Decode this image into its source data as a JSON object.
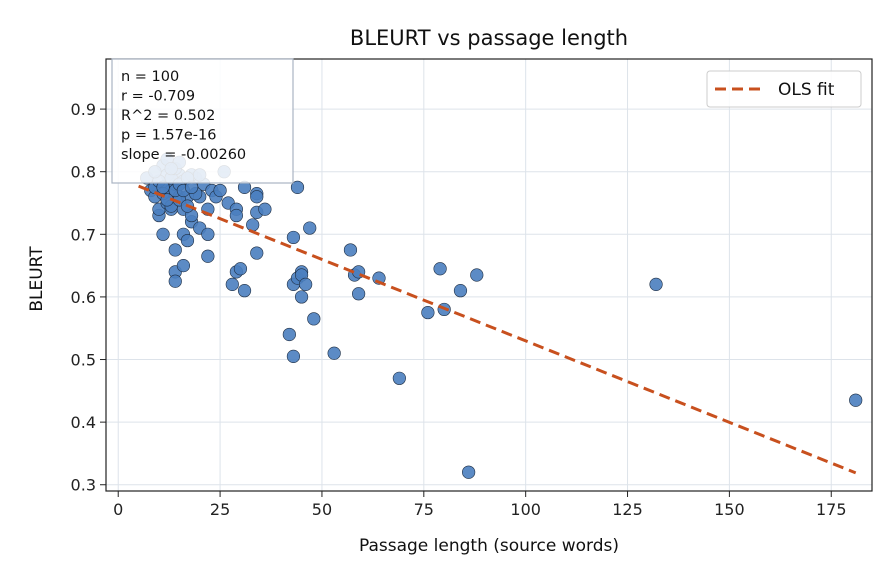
{
  "chart_data": {
    "type": "scatter",
    "title": "BLEURT vs passage length",
    "xlabel": "Passage length (source words)",
    "ylabel": "BLEURT",
    "xlim": [
      -3,
      185
    ],
    "ylim": [
      0.29,
      0.98
    ],
    "xticks": [
      0,
      25,
      50,
      75,
      100,
      125,
      150,
      175
    ],
    "yticks": [
      0.3,
      0.4,
      0.5,
      0.6,
      0.7,
      0.8,
      0.9
    ],
    "grid": true,
    "legend_position": "top-right",
    "point_color": "#4a7ebf",
    "fit_color": "#c8501e",
    "series": [
      {
        "name": "",
        "kind": "points",
        "points": [
          [
            7,
            0.79
          ],
          [
            8,
            0.77
          ],
          [
            9,
            0.76
          ],
          [
            10,
            0.73
          ],
          [
            10,
            0.74
          ],
          [
            11,
            0.7
          ],
          [
            11,
            0.81
          ],
          [
            12,
            0.75
          ],
          [
            12,
            0.78
          ],
          [
            13,
            0.74
          ],
          [
            13,
            0.77
          ],
          [
            14,
            0.78
          ],
          [
            14,
            0.64
          ],
          [
            14,
            0.625
          ],
          [
            14,
            0.675
          ],
          [
            15,
            0.76
          ],
          [
            15,
            0.795
          ],
          [
            16,
            0.65
          ],
          [
            16,
            0.7
          ],
          [
            16,
            0.74
          ],
          [
            17,
            0.69
          ],
          [
            17,
            0.76
          ],
          [
            18,
            0.72
          ],
          [
            18,
            0.73
          ],
          [
            19,
            0.79
          ],
          [
            20,
            0.76
          ],
          [
            20,
            0.71
          ],
          [
            21,
            0.78
          ],
          [
            22,
            0.74
          ],
          [
            22,
            0.7
          ],
          [
            22,
            0.665
          ],
          [
            23,
            0.77
          ],
          [
            24,
            0.76
          ],
          [
            25,
            0.77
          ],
          [
            26,
            0.8
          ],
          [
            27,
            0.75
          ],
          [
            28,
            0.62
          ],
          [
            29,
            0.74
          ],
          [
            29,
            0.73
          ],
          [
            29,
            0.64
          ],
          [
            30,
            0.645
          ],
          [
            31,
            0.61
          ],
          [
            31,
            0.775
          ],
          [
            33,
            0.715
          ],
          [
            34,
            0.765
          ],
          [
            34,
            0.735
          ],
          [
            34,
            0.67
          ],
          [
            34,
            0.76
          ],
          [
            36,
            0.74
          ],
          [
            42,
            0.54
          ],
          [
            43,
            0.505
          ],
          [
            43,
            0.695
          ],
          [
            43,
            0.62
          ],
          [
            44,
            0.775
          ],
          [
            44,
            0.63
          ],
          [
            45,
            0.64
          ],
          [
            45,
            0.6
          ],
          [
            45,
            0.635
          ],
          [
            46,
            0.62
          ],
          [
            47,
            0.71
          ],
          [
            48,
            0.565
          ],
          [
            53,
            0.51
          ],
          [
            57,
            0.675
          ],
          [
            58,
            0.635
          ],
          [
            59,
            0.64
          ],
          [
            59,
            0.605
          ],
          [
            64,
            0.63
          ],
          [
            69,
            0.47
          ],
          [
            76,
            0.575
          ],
          [
            79,
            0.645
          ],
          [
            80,
            0.58
          ],
          [
            84,
            0.61
          ],
          [
            86,
            0.32
          ],
          [
            88,
            0.635
          ],
          [
            132,
            0.62
          ],
          [
            181,
            0.435
          ],
          [
            9,
            0.775
          ],
          [
            11,
            0.765
          ],
          [
            12,
            0.795
          ],
          [
            13,
            0.745
          ],
          [
            15,
            0.755
          ],
          [
            16,
            0.785
          ],
          [
            17,
            0.745
          ],
          [
            18,
            0.795
          ],
          [
            19,
            0.765
          ],
          [
            13,
            0.79
          ],
          [
            14,
            0.77
          ],
          [
            12,
            0.755
          ],
          [
            10,
            0.785
          ],
          [
            15,
            0.78
          ],
          [
            16,
            0.77
          ],
          [
            20,
            0.795
          ],
          [
            14,
            0.805
          ],
          [
            12,
            0.82
          ],
          [
            15,
            0.815
          ],
          [
            9,
            0.8
          ],
          [
            13,
            0.805
          ],
          [
            11,
            0.775
          ],
          [
            17,
            0.79
          ],
          [
            18,
            0.775
          ]
        ]
      },
      {
        "name": "OLS fit",
        "kind": "line",
        "points": [
          [
            5,
            0.777
          ],
          [
            181,
            0.319
          ]
        ]
      }
    ],
    "stats": [
      "n = 100",
      "r = -0.709",
      "R^2 = 0.502",
      "p = 1.57e-16",
      "slope = -0.00260"
    ]
  }
}
